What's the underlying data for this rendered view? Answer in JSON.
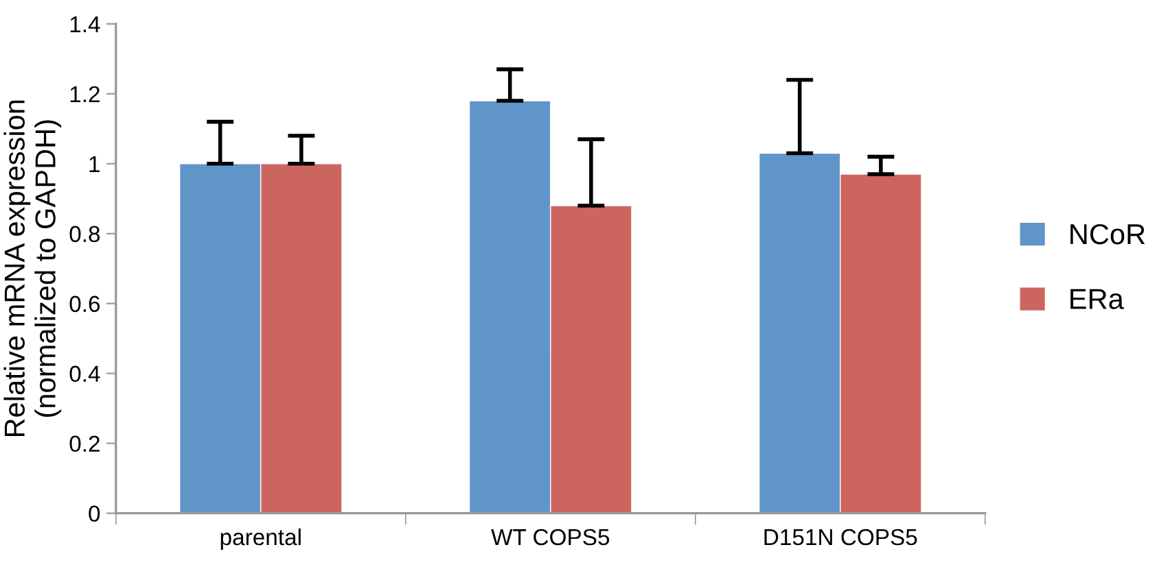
{
  "chart_data": {
    "type": "bar",
    "ylabel": "Relative mRNA expression\n(normalized to GAPDH)",
    "categories": [
      "parental",
      "WT COPS5",
      "D151N COPS5"
    ],
    "series": [
      {
        "name": "NCoR",
        "color": "#6095c9",
        "values": [
          1.0,
          1.18,
          1.03
        ],
        "errors": [
          [
            1.0,
            1.12
          ],
          [
            1.18,
            1.27
          ],
          [
            1.03,
            1.24
          ]
        ]
      },
      {
        "name": "ERa",
        "color": "#cc655e",
        "values": [
          1.0,
          0.88,
          0.97
        ],
        "errors": [
          [
            1.0,
            1.08
          ],
          [
            0.88,
            1.07
          ],
          [
            0.97,
            1.02
          ]
        ]
      }
    ],
    "ylim": [
      0,
      1.4
    ],
    "yticks": [
      0,
      0.2,
      0.4,
      0.6,
      0.8,
      1,
      1.2,
      1.4
    ],
    "grid": false,
    "legend": "right"
  }
}
